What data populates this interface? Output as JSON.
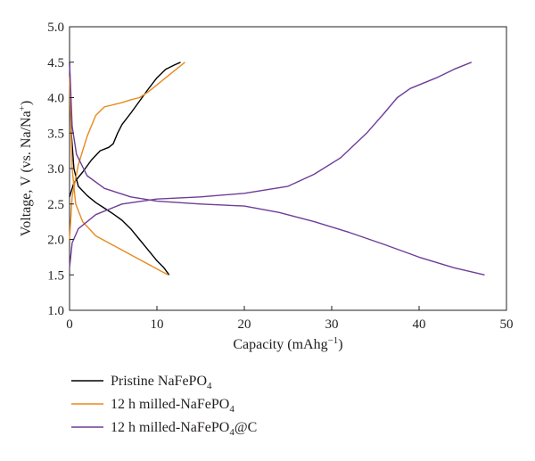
{
  "chart_data": {
    "type": "line",
    "title": "",
    "xlabel": "Capacity (mAhg",
    "xlabel_sup": "−1",
    "xlabel_tail": ")",
    "ylabel": "Voltage, V (vs. Na/Na",
    "ylabel_sup": "+",
    "ylabel_tail": ")",
    "xlim": [
      0,
      50
    ],
    "ylim": [
      1.0,
      5.0
    ],
    "xticks": [
      "0",
      "10",
      "20",
      "30",
      "40",
      "50"
    ],
    "yticks": [
      "1.0",
      "1.5",
      "2.0",
      "2.5",
      "3.0",
      "3.5",
      "4.0",
      "4.5",
      "5.0"
    ],
    "grid": false,
    "legend_position": "bottom-left, below plot",
    "series": [
      {
        "name_main": "Pristine NaFePO",
        "name_sub": "4",
        "name_tail": "",
        "color": "#000000",
        "charge": [
          [
            0.0,
            2.6
          ],
          [
            0.5,
            2.8
          ],
          [
            1.5,
            2.95
          ],
          [
            2.5,
            3.12
          ],
          [
            3.5,
            3.25
          ],
          [
            4.5,
            3.3
          ],
          [
            5.0,
            3.35
          ],
          [
            5.5,
            3.5
          ],
          [
            6.0,
            3.62
          ],
          [
            7.0,
            3.78
          ],
          [
            8.0,
            3.95
          ],
          [
            9.0,
            4.12
          ],
          [
            10.0,
            4.28
          ],
          [
            11.0,
            4.4
          ],
          [
            12.0,
            4.46
          ],
          [
            12.7,
            4.5
          ]
        ],
        "discharge": [
          [
            0.0,
            4.5
          ],
          [
            0.2,
            3.5
          ],
          [
            0.5,
            3.0
          ],
          [
            1.0,
            2.75
          ],
          [
            2.0,
            2.62
          ],
          [
            3.0,
            2.52
          ],
          [
            4.0,
            2.44
          ],
          [
            5.0,
            2.36
          ],
          [
            6.0,
            2.27
          ],
          [
            7.0,
            2.15
          ],
          [
            8.0,
            2.0
          ],
          [
            9.0,
            1.85
          ],
          [
            10.0,
            1.7
          ],
          [
            10.8,
            1.6
          ],
          [
            11.4,
            1.5
          ]
        ]
      },
      {
        "name_main": "12 h milled-NaFePO",
        "name_sub": "4",
        "name_tail": "",
        "color": "#e8891f",
        "charge": [
          [
            0.0,
            2.0
          ],
          [
            0.3,
            2.6
          ],
          [
            1.0,
            3.05
          ],
          [
            2.0,
            3.45
          ],
          [
            3.0,
            3.75
          ],
          [
            4.0,
            3.87
          ],
          [
            5.0,
            3.9
          ],
          [
            6.0,
            3.93
          ],
          [
            7.0,
            3.97
          ],
          [
            8.0,
            4.0
          ],
          [
            9.0,
            4.08
          ],
          [
            10.0,
            4.18
          ],
          [
            11.0,
            4.28
          ],
          [
            12.0,
            4.38
          ],
          [
            13.2,
            4.5
          ]
        ],
        "discharge": [
          [
            0.0,
            4.3
          ],
          [
            0.3,
            3.0
          ],
          [
            0.7,
            2.5
          ],
          [
            1.5,
            2.25
          ],
          [
            3.0,
            2.05
          ],
          [
            4.5,
            1.95
          ],
          [
            6.0,
            1.85
          ],
          [
            7.5,
            1.75
          ],
          [
            9.0,
            1.65
          ],
          [
            10.5,
            1.55
          ],
          [
            11.3,
            1.5
          ]
        ]
      },
      {
        "name_main": "12 h milled-NaFePO",
        "name_sub": "4",
        "name_tail": "@C",
        "color": "#6e3d97",
        "charge": [
          [
            0.0,
            1.6
          ],
          [
            0.3,
            1.95
          ],
          [
            1.0,
            2.15
          ],
          [
            3.0,
            2.35
          ],
          [
            6.0,
            2.5
          ],
          [
            10.0,
            2.57
          ],
          [
            15.0,
            2.6
          ],
          [
            20.0,
            2.65
          ],
          [
            25.0,
            2.75
          ],
          [
            28.0,
            2.92
          ],
          [
            31.0,
            3.15
          ],
          [
            34.0,
            3.5
          ],
          [
            36.0,
            3.78
          ],
          [
            37.5,
            4.0
          ],
          [
            39.0,
            4.13
          ],
          [
            42.0,
            4.28
          ],
          [
            44.0,
            4.4
          ],
          [
            46.0,
            4.5
          ]
        ],
        "discharge": [
          [
            0.0,
            4.5
          ],
          [
            0.3,
            3.6
          ],
          [
            0.8,
            3.2
          ],
          [
            2.0,
            2.9
          ],
          [
            4.0,
            2.72
          ],
          [
            7.0,
            2.6
          ],
          [
            10.0,
            2.54
          ],
          [
            15.0,
            2.5
          ],
          [
            20.0,
            2.47
          ],
          [
            24.0,
            2.38
          ],
          [
            28.0,
            2.25
          ],
          [
            32.0,
            2.1
          ],
          [
            36.0,
            1.93
          ],
          [
            40.0,
            1.75
          ],
          [
            44.0,
            1.6
          ],
          [
            47.5,
            1.5
          ]
        ]
      }
    ]
  }
}
